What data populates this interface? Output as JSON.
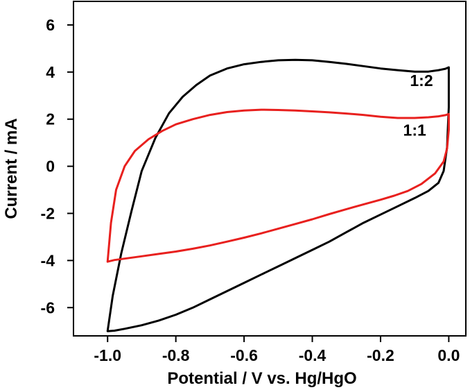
{
  "chart_data": {
    "type": "line",
    "title": "",
    "xlabel": "Potential / V vs. Hg/HgO",
    "ylabel": "Current / mA",
    "xlim": [
      -1.1,
      0.05
    ],
    "ylim": [
      -7.2,
      7.0
    ],
    "xticks": [
      -1.0,
      -0.8,
      -0.6,
      -0.4,
      -0.2,
      0.0
    ],
    "xtick_labels": [
      "-1.0",
      "-0.8",
      "-0.6",
      "-0.4",
      "-0.2",
      "0.0"
    ],
    "yticks": [
      -6,
      -4,
      -2,
      0,
      2,
      4,
      6
    ],
    "ytick_labels": [
      "-6",
      "-4",
      "-2",
      "0",
      "2",
      "4",
      "6"
    ],
    "grid": false,
    "legend": "none",
    "series": [
      {
        "name": "1:2",
        "color": "#000000",
        "x": [
          -1.0,
          -0.985,
          -0.96,
          -0.93,
          -0.9,
          -0.86,
          -0.82,
          -0.78,
          -0.74,
          -0.7,
          -0.65,
          -0.6,
          -0.55,
          -0.5,
          -0.45,
          -0.4,
          -0.35,
          -0.3,
          -0.25,
          -0.2,
          -0.15,
          -0.1,
          -0.06,
          -0.03,
          -0.01,
          0.0,
          0.0,
          -0.005,
          -0.015,
          -0.03,
          -0.06,
          -0.1,
          -0.15,
          -0.2,
          -0.25,
          -0.3,
          -0.35,
          -0.4,
          -0.45,
          -0.5,
          -0.55,
          -0.6,
          -0.65,
          -0.7,
          -0.75,
          -0.8,
          -0.85,
          -0.9,
          -0.95,
          -0.98,
          -1.0,
          -1.0
        ],
        "y": [
          -7.0,
          -5.5,
          -3.7,
          -1.9,
          -0.2,
          1.2,
          2.25,
          2.95,
          3.45,
          3.85,
          4.15,
          4.33,
          4.43,
          4.5,
          4.52,
          4.5,
          4.43,
          4.35,
          4.25,
          4.15,
          4.08,
          4.02,
          4.02,
          4.08,
          4.14,
          4.2,
          2.5,
          0.8,
          -0.2,
          -0.7,
          -1.05,
          -1.35,
          -1.7,
          -2.05,
          -2.4,
          -2.8,
          -3.2,
          -3.55,
          -3.9,
          -4.25,
          -4.6,
          -4.95,
          -5.3,
          -5.65,
          -6.0,
          -6.3,
          -6.55,
          -6.75,
          -6.9,
          -6.98,
          -7.0,
          -7.0
        ]
      },
      {
        "name": "1:1",
        "color": "#e8201e",
        "x": [
          -1.0,
          -0.99,
          -0.975,
          -0.95,
          -0.92,
          -0.88,
          -0.84,
          -0.8,
          -0.75,
          -0.7,
          -0.65,
          -0.6,
          -0.55,
          -0.5,
          -0.45,
          -0.4,
          -0.35,
          -0.3,
          -0.25,
          -0.2,
          -0.15,
          -0.1,
          -0.06,
          -0.03,
          -0.01,
          0.0,
          0.0,
          -0.005,
          -0.015,
          -0.04,
          -0.08,
          -0.12,
          -0.16,
          -0.2,
          -0.25,
          -0.3,
          -0.35,
          -0.4,
          -0.45,
          -0.5,
          -0.55,
          -0.6,
          -0.65,
          -0.7,
          -0.75,
          -0.8,
          -0.85,
          -0.9,
          -0.95,
          -0.98,
          -1.0,
          -1.0
        ],
        "y": [
          -4.05,
          -2.4,
          -1.0,
          0.0,
          0.65,
          1.15,
          1.5,
          1.78,
          2.0,
          2.18,
          2.3,
          2.37,
          2.4,
          2.39,
          2.37,
          2.33,
          2.29,
          2.24,
          2.18,
          2.1,
          2.05,
          2.05,
          2.08,
          2.12,
          2.17,
          2.22,
          1.55,
          0.75,
          0.2,
          -0.3,
          -0.75,
          -1.05,
          -1.25,
          -1.42,
          -1.62,
          -1.82,
          -2.03,
          -2.25,
          -2.45,
          -2.65,
          -2.85,
          -3.03,
          -3.2,
          -3.36,
          -3.5,
          -3.62,
          -3.72,
          -3.82,
          -3.92,
          -3.98,
          -4.05,
          -4.05
        ]
      }
    ],
    "annotations": [
      {
        "text": "1:2",
        "x": -0.08,
        "y": 3.4
      },
      {
        "text": "1:1",
        "x": -0.1,
        "y": 1.3
      }
    ]
  }
}
